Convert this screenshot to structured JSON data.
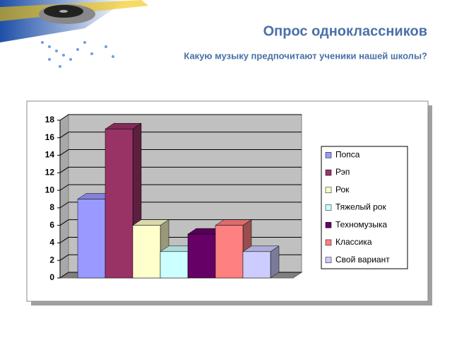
{
  "chart_data": {
    "type": "bar",
    "title": "Опрос одноклассников",
    "subtitle": "Какую музыку предпочитают ученики нашей школы?",
    "categories": [
      "Попса",
      "Рэп",
      "Рок",
      "Тяжелый рок",
      "Техномузыка",
      "Классика",
      "Свой вариант"
    ],
    "values": [
      9,
      17,
      6,
      3,
      5,
      6,
      3
    ],
    "colors": [
      "#9999ff",
      "#993366",
      "#ffffcc",
      "#ccffff",
      "#660066",
      "#ff8080",
      "#ccccff"
    ],
    "ylim": [
      0,
      18
    ],
    "yticks": [
      0,
      2,
      4,
      6,
      8,
      10,
      12,
      14,
      16,
      18
    ],
    "grid": true,
    "legend": "right"
  }
}
